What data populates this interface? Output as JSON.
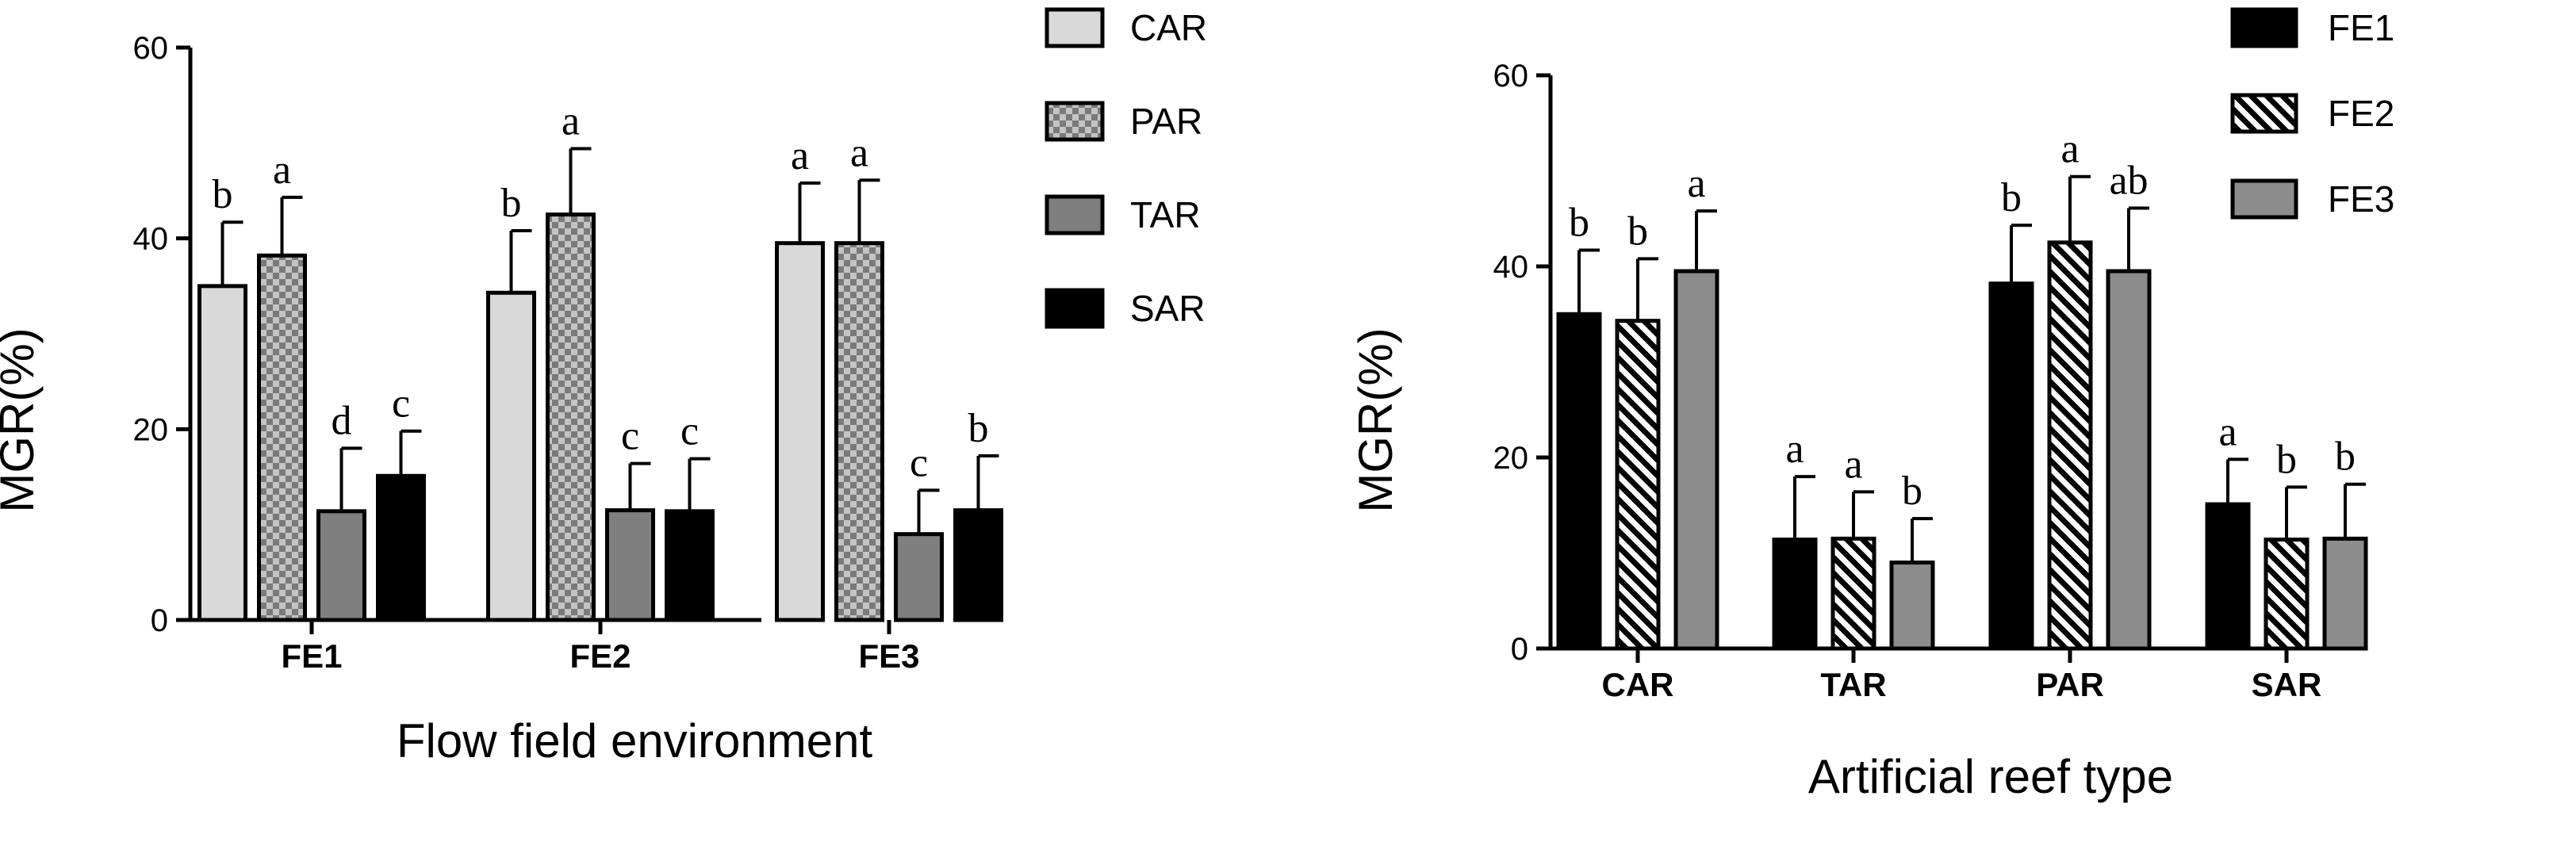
{
  "chart_data": [
    {
      "type": "bar",
      "xlabel": "Flow field environment",
      "ylabel": "MGR(%)",
      "ylim": [
        0,
        60
      ],
      "yticks": [
        0,
        20,
        40,
        60
      ],
      "categories": [
        "FE1",
        "FE2",
        "FE3"
      ],
      "legend_position": "top-right",
      "series": [
        {
          "name": "CAR",
          "color": "#d9d9d9",
          "pattern": "solid",
          "values": [
            35.0,
            34.3,
            39.5
          ],
          "errors": [
            6.7,
            6.5,
            6.3
          ],
          "letters": [
            "b",
            "b",
            "a"
          ]
        },
        {
          "name": "PAR",
          "color": "#9a9a9a",
          "pattern": "checker",
          "values": [
            38.2,
            42.5,
            39.5
          ],
          "errors": [
            6.1,
            6.9,
            6.6
          ],
          "letters": [
            "a",
            "a",
            "a"
          ]
        },
        {
          "name": "TAR",
          "color": "#7f7f7f",
          "pattern": "solid",
          "values": [
            11.4,
            11.5,
            9.0
          ],
          "errors": [
            6.6,
            4.9,
            4.6
          ],
          "letters": [
            "d",
            "c",
            "c"
          ]
        },
        {
          "name": "SAR",
          "color": "#000000",
          "pattern": "solid",
          "values": [
            15.1,
            11.4,
            11.5
          ],
          "errors": [
            4.7,
            5.5,
            5.7
          ],
          "letters": [
            "c",
            "c",
            "b"
          ]
        }
      ]
    },
    {
      "type": "bar",
      "xlabel": "Artificial reef type",
      "ylabel": "MGR(%)",
      "ylim": [
        0,
        60
      ],
      "yticks": [
        0,
        20,
        40,
        60
      ],
      "categories": [
        "CAR",
        "TAR",
        "PAR",
        "SAR"
      ],
      "legend_position": "top-right",
      "series": [
        {
          "name": "FE1",
          "color": "#000000",
          "pattern": "solid",
          "values": [
            35.0,
            11.4,
            38.2,
            15.1
          ],
          "errors": [
            6.7,
            6.6,
            6.1,
            4.7
          ],
          "letters": [
            "b",
            "a",
            "b",
            "a"
          ]
        },
        {
          "name": "FE2",
          "color": "#000000",
          "pattern": "hatch",
          "values": [
            34.3,
            11.5,
            42.5,
            11.4
          ],
          "errors": [
            6.5,
            4.9,
            6.9,
            5.5
          ],
          "letters": [
            "b",
            "a",
            "a",
            "b"
          ]
        },
        {
          "name": "FE3",
          "color": "#8c8c8c",
          "pattern": "solid",
          "values": [
            39.5,
            9.0,
            39.5,
            11.5
          ],
          "errors": [
            6.3,
            4.6,
            6.6,
            5.7
          ],
          "letters": [
            "a",
            "b",
            "ab",
            "b"
          ]
        }
      ]
    }
  ]
}
